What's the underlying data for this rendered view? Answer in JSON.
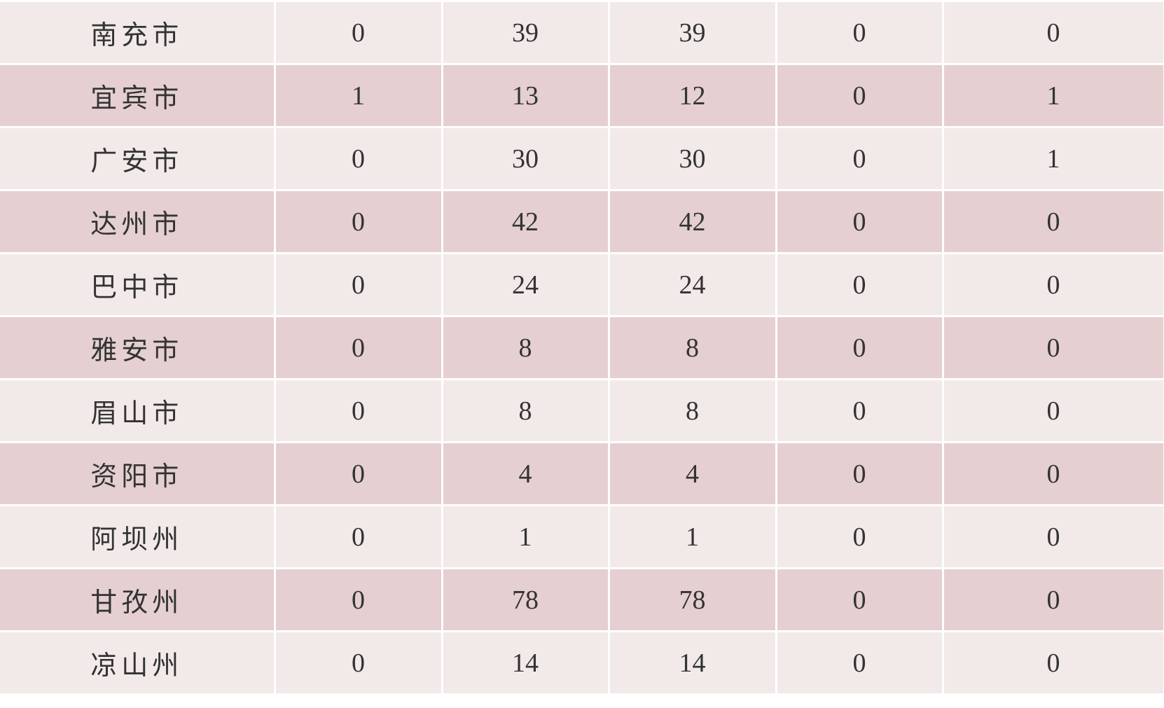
{
  "table": {
    "rows": [
      [
        "南充市",
        0,
        39,
        39,
        0,
        0
      ],
      [
        "宜宾市",
        1,
        13,
        12,
        0,
        1
      ],
      [
        "广安市",
        0,
        30,
        30,
        0,
        1
      ],
      [
        "达州市",
        0,
        42,
        42,
        0,
        0
      ],
      [
        "巴中市",
        0,
        24,
        24,
        0,
        0
      ],
      [
        "雅安市",
        0,
        8,
        8,
        0,
        0
      ],
      [
        "眉山市",
        0,
        8,
        8,
        0,
        0
      ],
      [
        "资阳市",
        0,
        4,
        4,
        0,
        0
      ],
      [
        "阿坝州",
        0,
        1,
        1,
        0,
        0
      ],
      [
        "甘孜州",
        0,
        78,
        78,
        0,
        0
      ],
      [
        "凉山州",
        0,
        14,
        14,
        0,
        0
      ]
    ]
  }
}
